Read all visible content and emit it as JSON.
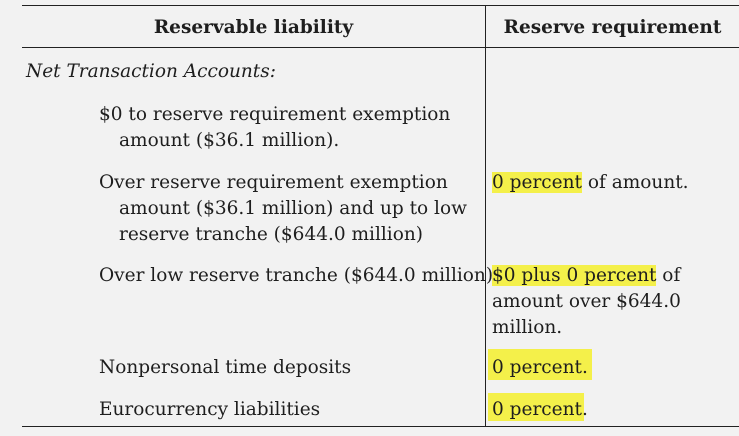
{
  "table": {
    "headers": {
      "liability": "Reservable liability",
      "requirement": "Reserve requirement"
    },
    "section": "Net Transaction Accounts:",
    "rows": [
      {
        "liability": [
          "$0 to reserve requirement exemption",
          "amount ($36.1 million)."
        ],
        "requirement_hl": "",
        "requirement_rest": []
      },
      {
        "liability": [
          "Over reserve requirement exemption",
          "amount ($36.1 million) and up to low",
          "reserve tranche ($644.0 million)"
        ],
        "requirement_hl": "0 percent",
        "requirement_rest": [
          " of amount."
        ]
      },
      {
        "liability": [
          "Over low reserve tranche ($644.0 million)"
        ],
        "requirement_hl": "$0 plus 0 percent",
        "requirement_rest": [
          " of",
          "amount over $644.0",
          "million."
        ]
      },
      {
        "liability": [
          "Nonpersonal time deposits"
        ],
        "requirement_hl": "0 percent.",
        "requirement_rest": []
      },
      {
        "liability": [
          "Eurocurrency liabilities"
        ],
        "requirement_hl": "0 percent.",
        "requirement_rest": []
      }
    ]
  },
  "colors": {
    "highlight": "#f4f04a",
    "background": "#f2f2f2",
    "rule": "#222222"
  }
}
